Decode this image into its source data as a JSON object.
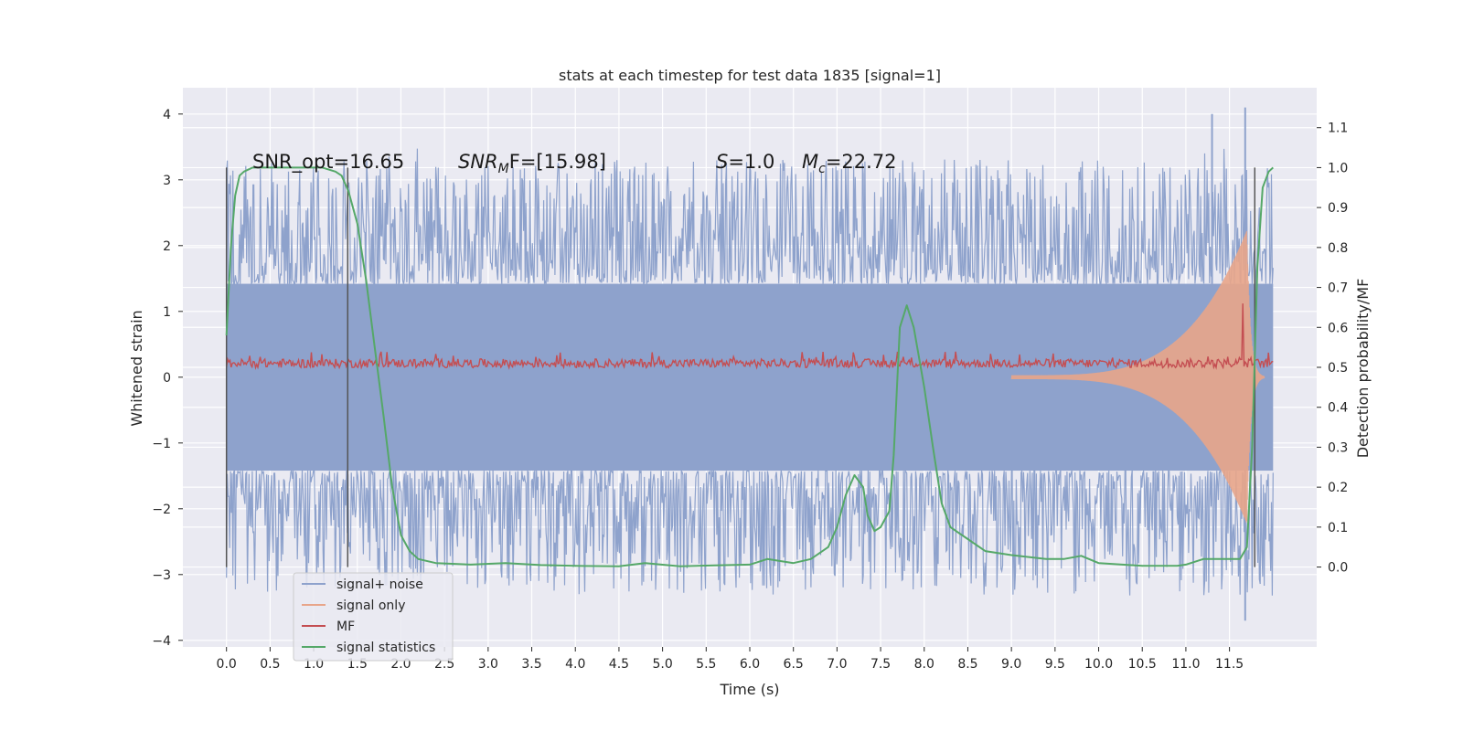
{
  "chart_data": {
    "type": "line",
    "title": "stats at each timestep for test data 1835 [signal=1]",
    "xlabel": "Time (s)",
    "ylabel": "Whitened strain",
    "y2label": "Detection probability/MF",
    "xlim": [
      -0.5,
      12.5
    ],
    "ylim": [
      -4.1,
      4.4
    ],
    "y2lim": [
      -0.2,
      1.2
    ],
    "x_ticks": [
      "0.0",
      "0.5",
      "1.0",
      "1.5",
      "2.0",
      "2.5",
      "3.0",
      "3.5",
      "4.0",
      "4.5",
      "5.0",
      "5.5",
      "6.0",
      "6.5",
      "7.0",
      "7.5",
      "8.0",
      "8.5",
      "9.0",
      "9.5",
      "10.0",
      "10.5",
      "11.0",
      "11.5"
    ],
    "y_ticks": [
      "4",
      "3",
      "2",
      "1",
      "0",
      "−1",
      "−2",
      "−3",
      "−4"
    ],
    "y2_ticks": [
      "1.1",
      "1.0",
      "0.9",
      "0.8",
      "0.7",
      "0.6",
      "0.5",
      "0.4",
      "0.3",
      "0.2",
      "0.1",
      "0.0"
    ],
    "grid": true,
    "legend_position": "lower-left",
    "annotations": {
      "snr_opt": "SNR_opt=16.65",
      "snr_mf_base": "SNR",
      "snr_mf_sub": "M",
      "snr_mf_rest": "F=[15.98]",
      "s_base": "S",
      "s_rest": "=1.0",
      "mc_base": "M",
      "mc_sub": "c",
      "mc_rest": "=22.72"
    },
    "vlines_x": [
      0.0,
      1.39,
      11.79
    ],
    "series": [
      {
        "name": "signal+ noise",
        "color": "#8ea2cc",
        "axis": "left",
        "x_range": [
          0.0,
          12.0
        ],
        "band": [
          -1.42,
          1.42
        ],
        "peak_max": 4.1,
        "peak_min": -3.7
      },
      {
        "name": "signal only",
        "color": "#e8a58a",
        "axis": "left",
        "x_range": [
          9.0,
          11.9
        ],
        "envelope_end": 2.2
      },
      {
        "name": "MF",
        "color": "#c44e52",
        "axis": "right",
        "x_range": [
          0.0,
          12.0
        ],
        "baseline": 0.51,
        "spike": {
          "x": 11.65,
          "y": 0.66
        }
      },
      {
        "name": "signal statistics",
        "color": "#55a868",
        "axis": "right",
        "points": [
          [
            0.0,
            0.58
          ],
          [
            0.05,
            0.8
          ],
          [
            0.1,
            0.93
          ],
          [
            0.15,
            0.98
          ],
          [
            0.2,
            0.99
          ],
          [
            0.3,
            1.0
          ],
          [
            0.5,
            1.0
          ],
          [
            0.8,
            1.0
          ],
          [
            1.1,
            1.0
          ],
          [
            1.25,
            0.99
          ],
          [
            1.32,
            0.98
          ],
          [
            1.4,
            0.94
          ],
          [
            1.5,
            0.86
          ],
          [
            1.6,
            0.72
          ],
          [
            1.7,
            0.55
          ],
          [
            1.8,
            0.38
          ],
          [
            1.9,
            0.2
          ],
          [
            2.0,
            0.08
          ],
          [
            2.1,
            0.04
          ],
          [
            2.2,
            0.02
          ],
          [
            2.4,
            0.01
          ],
          [
            2.8,
            0.006
          ],
          [
            3.2,
            0.01
          ],
          [
            3.6,
            0.005
          ],
          [
            4.0,
            0.003
          ],
          [
            4.5,
            0.002
          ],
          [
            4.8,
            0.01
          ],
          [
            5.2,
            0.002
          ],
          [
            5.6,
            0.004
          ],
          [
            6.0,
            0.006
          ],
          [
            6.2,
            0.02
          ],
          [
            6.5,
            0.01
          ],
          [
            6.7,
            0.02
          ],
          [
            6.9,
            0.05
          ],
          [
            7.0,
            0.1
          ],
          [
            7.1,
            0.18
          ],
          [
            7.2,
            0.23
          ],
          [
            7.3,
            0.2
          ],
          [
            7.35,
            0.13
          ],
          [
            7.43,
            0.09
          ],
          [
            7.5,
            0.1
          ],
          [
            7.6,
            0.14
          ],
          [
            7.65,
            0.28
          ],
          [
            7.72,
            0.6
          ],
          [
            7.8,
            0.655
          ],
          [
            7.88,
            0.6
          ],
          [
            8.0,
            0.45
          ],
          [
            8.1,
            0.3
          ],
          [
            8.2,
            0.16
          ],
          [
            8.3,
            0.1
          ],
          [
            8.5,
            0.07
          ],
          [
            8.7,
            0.04
          ],
          [
            9.0,
            0.03
          ],
          [
            9.4,
            0.02
          ],
          [
            9.6,
            0.02
          ],
          [
            9.8,
            0.028
          ],
          [
            10.0,
            0.01
          ],
          [
            10.5,
            0.003
          ],
          [
            10.9,
            0.003
          ],
          [
            11.0,
            0.006
          ],
          [
            11.2,
            0.02
          ],
          [
            11.5,
            0.02
          ],
          [
            11.62,
            0.02
          ],
          [
            11.7,
            0.05
          ],
          [
            11.76,
            0.3
          ],
          [
            11.82,
            0.75
          ],
          [
            11.88,
            0.95
          ],
          [
            11.95,
            0.99
          ],
          [
            12.0,
            1.0
          ]
        ]
      }
    ]
  }
}
